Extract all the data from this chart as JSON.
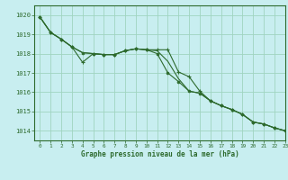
{
  "title": "Graphe pression niveau de la mer (hPa)",
  "background_color": "#c8eef0",
  "grid_color": "#a0d4c0",
  "line_color": "#2d6a2d",
  "xlim": [
    -0.5,
    23
  ],
  "ylim": [
    1013.5,
    1020.5
  ],
  "yticks": [
    1014,
    1015,
    1016,
    1017,
    1018,
    1019,
    1020
  ],
  "xticks": [
    0,
    1,
    2,
    3,
    4,
    5,
    6,
    7,
    8,
    9,
    10,
    11,
    12,
    13,
    14,
    15,
    16,
    17,
    18,
    19,
    20,
    21,
    22,
    23
  ],
  "series1_smooth": {
    "x": [
      0,
      1,
      2,
      3,
      4,
      5,
      6,
      7,
      8,
      9,
      10,
      11,
      12,
      13,
      14,
      15,
      16,
      17,
      18,
      19,
      20,
      21,
      22,
      23
    ],
    "y": [
      1019.9,
      1019.1,
      1018.75,
      1018.35,
      1018.05,
      1018.0,
      1017.95,
      1017.95,
      1018.15,
      1018.25,
      1018.2,
      1018.15,
      1017.6,
      1016.7,
      1016.05,
      1015.95,
      1015.55,
      1015.3,
      1015.1,
      1014.85,
      1014.45,
      1014.35,
      1014.15,
      1014.0
    ]
  },
  "series2_markers": {
    "x": [
      0,
      1,
      2,
      3,
      4,
      5,
      6,
      7,
      8,
      9,
      10,
      11,
      12,
      13,
      14,
      15,
      16,
      17,
      18,
      19,
      20,
      21,
      22,
      23
    ],
    "y": [
      1019.9,
      1019.1,
      1018.75,
      1018.35,
      1017.55,
      1018.0,
      1017.95,
      1017.95,
      1018.15,
      1018.25,
      1018.2,
      1018.2,
      1018.2,
      1017.05,
      1016.8,
      1016.05,
      1015.55,
      1015.3,
      1015.1,
      1014.85,
      1014.45,
      1014.35,
      1014.15,
      1014.0
    ],
    "marker": "+"
  },
  "series3_dots": {
    "x": [
      0,
      1,
      2,
      3,
      4,
      5,
      6,
      7,
      8,
      9,
      10,
      11,
      12,
      13,
      14,
      15,
      16,
      17,
      18,
      19,
      20,
      21,
      22,
      23
    ],
    "y": [
      1019.9,
      1019.1,
      1018.75,
      1018.35,
      1018.05,
      1018.0,
      1017.95,
      1017.95,
      1018.15,
      1018.25,
      1018.2,
      1018.0,
      1017.0,
      1016.55,
      1016.05,
      1015.95,
      1015.55,
      1015.3,
      1015.1,
      1014.85,
      1014.45,
      1014.35,
      1014.15,
      1014.0
    ],
    "marker": "o"
  }
}
